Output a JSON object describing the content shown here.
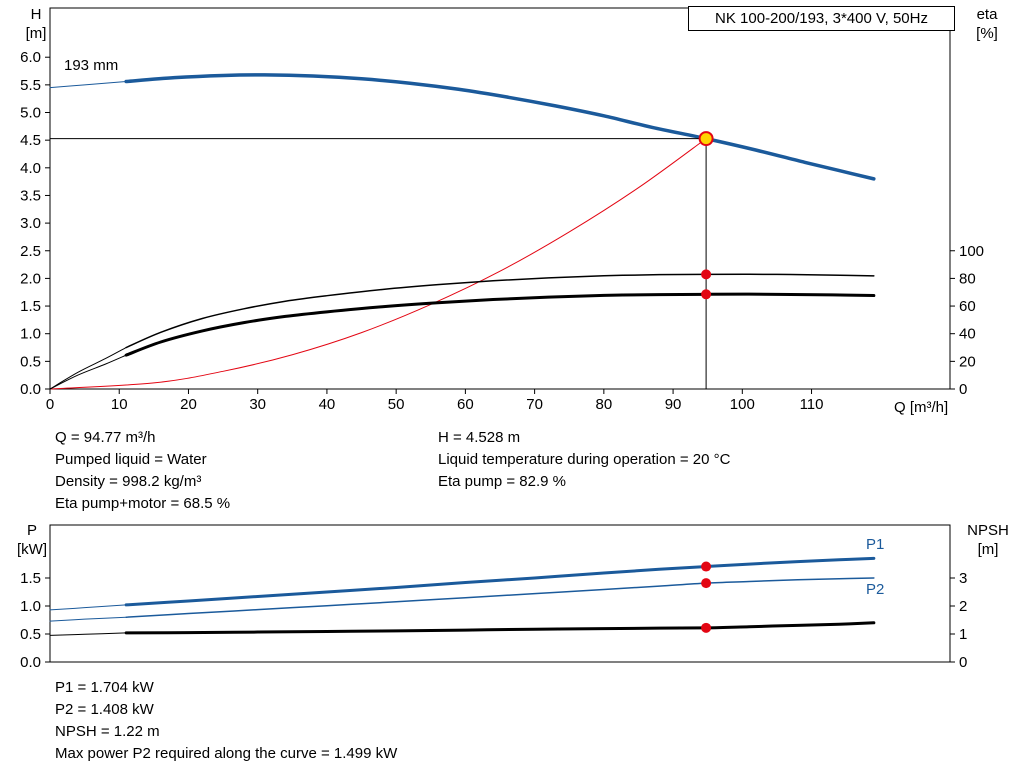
{
  "title_box": "NK 100-200/193, 3*400 V, 50Hz",
  "colors": {
    "curve_blue": "#1b5a9b",
    "curve_red": "#e30613",
    "curve_black": "#000000",
    "duty_point_fill": "#ffd400",
    "marker_red": "#e30613",
    "frame": "#000000"
  },
  "labels": {
    "top_left_axis": [
      "H",
      "[m]"
    ],
    "top_right_axis": [
      "eta",
      "[%]"
    ],
    "x_axis": "Q [m³/h]",
    "impeller": "193 mm",
    "bottom_left_axis": [
      "P",
      "[kW]"
    ],
    "bottom_right_axis": [
      "NPSH",
      "[m]"
    ],
    "p1": "P1",
    "p2": "P2"
  },
  "info": {
    "top_left": [
      "Q = 94.77 m³/h",
      "Pumped liquid = Water",
      "Density = 998.2 kg/m³",
      "Eta pump+motor = 68.5 %"
    ],
    "top_right": [
      "H = 4.528 m",
      "Liquid temperature during operation = 20 °C",
      "Eta pump = 82.9 %"
    ],
    "bottom": [
      "P1 = 1.704 kW",
      "P2 = 1.408 kW",
      "NPSH = 1.22 m",
      "Max power P2 required along the curve = 1.499 kW"
    ]
  },
  "chart_data": [
    {
      "id": "qh",
      "type": "line",
      "title": "NK 100-200/193, 3*400 V, 50Hz",
      "xlabel": "Q [m³/h]",
      "ylabel": "H [m]",
      "y2label": "eta [%]",
      "xlim": [
        0,
        130
      ],
      "ylim": [
        0,
        6.89
      ],
      "y2lim": [
        0,
        275.6
      ],
      "grid": false,
      "xticks": {
        "values": [
          0,
          10,
          20,
          30,
          40,
          50,
          60,
          70,
          80,
          90,
          100,
          110
        ],
        "labels": [
          "0",
          "10",
          "20",
          "30",
          "40",
          "50",
          "60",
          "70",
          "80",
          "90",
          "100",
          "110"
        ]
      },
      "yticks": {
        "values": [
          0,
          0.5,
          1,
          1.5,
          2,
          2.5,
          3,
          3.5,
          4,
          4.5,
          5,
          5.5,
          6
        ],
        "labels": [
          "0.0",
          "0.5",
          "1.0",
          "1.5",
          "2.0",
          "2.5",
          "3.0",
          "3.5",
          "4.0",
          "4.5",
          "5.0",
          "5.5",
          "6.0"
        ]
      },
      "y2ticks": {
        "values": [
          0,
          20,
          40,
          60,
          80,
          100
        ],
        "labels": [
          "0",
          "20",
          "40",
          "60",
          "80",
          "100"
        ]
      },
      "series": [
        {
          "name": "qh-curve-leadin",
          "axis": "y",
          "color": "#1b5a9b",
          "width": 1,
          "points": [
            [
              0,
              5.45
            ],
            [
              5,
              5.5
            ],
            [
              9,
              5.54
            ],
            [
              11,
              5.56
            ]
          ]
        },
        {
          "name": "qh-curve-193mm",
          "axis": "y",
          "color": "#1b5a9b",
          "width": 3.5,
          "points": [
            [
              11,
              5.56
            ],
            [
              18,
              5.63
            ],
            [
              25,
              5.67
            ],
            [
              31,
              5.68
            ],
            [
              38,
              5.66
            ],
            [
              45,
              5.61
            ],
            [
              52,
              5.53
            ],
            [
              59,
              5.42
            ],
            [
              66,
              5.28
            ],
            [
              73,
              5.12
            ],
            [
              80,
              4.94
            ],
            [
              87,
              4.73
            ],
            [
              94.77,
              4.528
            ],
            [
              102,
              4.32
            ],
            [
              109,
              4.1
            ],
            [
              114,
              3.95
            ],
            [
              119,
              3.8
            ]
          ]
        },
        {
          "name": "system-curve",
          "axis": "y",
          "color": "#e30613",
          "width": 1,
          "points": [
            [
              0,
              0
            ],
            [
              15,
              0.11
            ],
            [
              25,
              0.32
            ],
            [
              35,
              0.62
            ],
            [
              45,
              1.02
            ],
            [
              55,
              1.53
            ],
            [
              65,
              2.13
            ],
            [
              75,
              2.84
            ],
            [
              85,
              3.64
            ],
            [
              94.77,
              4.528
            ]
          ]
        },
        {
          "name": "eta-pump-leadin",
          "axis": "y2",
          "color": "#000000",
          "width": 1,
          "points": [
            [
              0,
              0
            ],
            [
              4,
              12
            ],
            [
              8,
              22
            ],
            [
              11,
              30
            ]
          ]
        },
        {
          "name": "eta-pump-curve",
          "axis": "y2",
          "color": "#000000",
          "width": 1.5,
          "points": [
            [
              11,
              30
            ],
            [
              16,
              41
            ],
            [
              22,
              51
            ],
            [
              28,
              58
            ],
            [
              34,
              63.5
            ],
            [
              40,
              67.5
            ],
            [
              48,
              72
            ],
            [
              56,
              75.5
            ],
            [
              64,
              78.3
            ],
            [
              72,
              80.4
            ],
            [
              80,
              81.9
            ],
            [
              88,
              82.7
            ],
            [
              94.77,
              82.9
            ],
            [
              101,
              83.0
            ],
            [
              107,
              82.8
            ],
            [
              113,
              82.4
            ],
            [
              119,
              81.8
            ]
          ]
        },
        {
          "name": "eta-pump-motor-leadin",
          "axis": "y2",
          "color": "#000000",
          "width": 1,
          "points": [
            [
              0,
              0
            ],
            [
              4,
              10
            ],
            [
              8,
              18
            ],
            [
              11,
              24.5
            ]
          ]
        },
        {
          "name": "eta-pump-motor-curve",
          "axis": "y2",
          "color": "#000000",
          "width": 3,
          "points": [
            [
              11,
              24.5
            ],
            [
              16,
              34
            ],
            [
              22,
              42
            ],
            [
              28,
              48
            ],
            [
              34,
              52.5
            ],
            [
              40,
              55.8
            ],
            [
              48,
              59.5
            ],
            [
              56,
              62.4
            ],
            [
              64,
              64.7
            ],
            [
              72,
              66.5
            ],
            [
              80,
              67.7
            ],
            [
              88,
              68.3
            ],
            [
              94.77,
              68.5
            ],
            [
              101,
              68.6
            ],
            [
              107,
              68.4
            ],
            [
              113,
              68.1
            ],
            [
              119,
              67.6
            ]
          ]
        }
      ],
      "guides": [
        {
          "name": "duty-head-guide-line",
          "x1": 0,
          "y1": 4.528,
          "x2": 94.77,
          "y2": 4.528,
          "axis": "y",
          "color": "#000000",
          "width": 1
        },
        {
          "name": "duty-flow-guide-line",
          "x1": 94.77,
          "y1": 0,
          "x2": 94.77,
          "y2": 4.528,
          "axis": "y",
          "color": "#000000",
          "width": 1
        }
      ],
      "markers": [
        {
          "name": "duty-point",
          "x": 94.77,
          "y": 4.528,
          "axis": "y",
          "r": 6.5,
          "fill": "#ffd400",
          "stroke": "#e30613",
          "stroke_width": 2
        },
        {
          "name": "eta-pump-point",
          "x": 94.77,
          "y": 82.9,
          "axis": "y2",
          "r": 5,
          "fill": "#e30613",
          "stroke": "none",
          "stroke_width": 0
        },
        {
          "name": "eta-pump-motor-point",
          "x": 94.77,
          "y": 68.5,
          "axis": "y2",
          "r": 5,
          "fill": "#e30613",
          "stroke": "none",
          "stroke_width": 0
        }
      ]
    },
    {
      "id": "power",
      "type": "line",
      "title": "",
      "xlabel": "Q [m³/h]",
      "ylabel": "P [kW]",
      "y2label": "NPSH [m]",
      "xlim": [
        0,
        130
      ],
      "ylim": [
        0,
        2.446
      ],
      "y2lim": [
        0,
        4.893
      ],
      "grid": false,
      "xticks": {
        "values": [],
        "labels": []
      },
      "yticks": {
        "values": [
          0,
          0.5,
          1,
          1.5
        ],
        "labels": [
          "0.0",
          "0.5",
          "1.0",
          "1.5"
        ]
      },
      "y2ticks": {
        "values": [
          0,
          1,
          2,
          3
        ],
        "labels": [
          "0",
          "1",
          "2",
          "3"
        ]
      },
      "series": [
        {
          "name": "p1-leadin",
          "axis": "y",
          "color": "#1b5a9b",
          "width": 1,
          "points": [
            [
              0,
              0.93
            ],
            [
              5,
              0.97
            ],
            [
              11,
              1.02
            ]
          ]
        },
        {
          "name": "p1-curve",
          "axis": "y",
          "color": "#1b5a9b",
          "width": 3,
          "points": [
            [
              11,
              1.02
            ],
            [
              20,
              1.09
            ],
            [
              30,
              1.17
            ],
            [
              40,
              1.25
            ],
            [
              50,
              1.33
            ],
            [
              60,
              1.42
            ],
            [
              70,
              1.5
            ],
            [
              80,
              1.59
            ],
            [
              88,
              1.655
            ],
            [
              94.77,
              1.704
            ],
            [
              101,
              1.748
            ],
            [
              108,
              1.793
            ],
            [
              114,
              1.825
            ],
            [
              119,
              1.85
            ]
          ]
        },
        {
          "name": "p2-leadin",
          "axis": "y",
          "color": "#1b5a9b",
          "width": 1,
          "points": [
            [
              0,
              0.73
            ],
            [
              5,
              0.765
            ],
            [
              11,
              0.8
            ]
          ]
        },
        {
          "name": "p2-curve",
          "axis": "y",
          "color": "#1b5a9b",
          "width": 1.5,
          "points": [
            [
              11,
              0.8
            ],
            [
              20,
              0.865
            ],
            [
              30,
              0.935
            ],
            [
              40,
              1.005
            ],
            [
              50,
              1.075
            ],
            [
              60,
              1.148
            ],
            [
              70,
              1.22
            ],
            [
              80,
              1.295
            ],
            [
              88,
              1.355
            ],
            [
              94.77,
              1.408
            ],
            [
              101,
              1.437
            ],
            [
              108,
              1.468
            ],
            [
              114,
              1.486
            ],
            [
              119,
              1.499
            ]
          ]
        },
        {
          "name": "npsh-leadin",
          "axis": "y2",
          "color": "#000000",
          "width": 1,
          "points": [
            [
              0,
              0.95
            ],
            [
              5,
              0.99
            ],
            [
              11,
              1.04
            ]
          ]
        },
        {
          "name": "npsh-curve",
          "axis": "y2",
          "color": "#000000",
          "width": 3,
          "points": [
            [
              11,
              1.04
            ],
            [
              20,
              1.05
            ],
            [
              30,
              1.07
            ],
            [
              40,
              1.09
            ],
            [
              50,
              1.11
            ],
            [
              60,
              1.14
            ],
            [
              70,
              1.17
            ],
            [
              80,
              1.19
            ],
            [
              88,
              1.21
            ],
            [
              94.77,
              1.22
            ],
            [
              101,
              1.26
            ],
            [
              108,
              1.31
            ],
            [
              114,
              1.35
            ],
            [
              119,
              1.4
            ]
          ]
        }
      ],
      "guides": [],
      "markers": [
        {
          "name": "p1-point",
          "x": 94.77,
          "y": 1.704,
          "axis": "y",
          "r": 5,
          "fill": "#e30613",
          "stroke": "none",
          "stroke_width": 0
        },
        {
          "name": "p2-point",
          "x": 94.77,
          "y": 1.408,
          "axis": "y",
          "r": 5,
          "fill": "#e30613",
          "stroke": "none",
          "stroke_width": 0
        },
        {
          "name": "npsh-point",
          "x": 94.77,
          "y": 1.22,
          "axis": "y2",
          "r": 5,
          "fill": "#e30613",
          "stroke": "none",
          "stroke_width": 0
        }
      ]
    }
  ]
}
